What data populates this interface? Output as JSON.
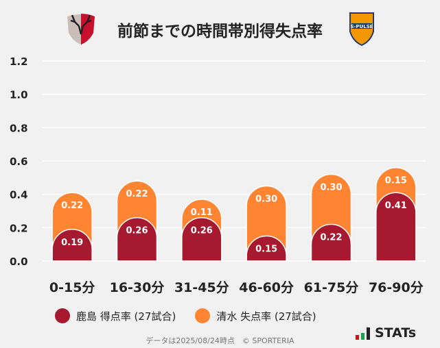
{
  "title": "前節までの時間帯別得失点率",
  "logos": {
    "left": "鹿島アントラーズ エンブレム",
    "right": "S-PULSE"
  },
  "footer": "データは2025/08/24時点　© SPORTERIA",
  "brand": "STATs",
  "chart_data": {
    "type": "bar",
    "stacked": true,
    "categories": [
      "0-15分",
      "16-30分",
      "31-45分",
      "46-60分",
      "61-75分",
      "76-90分"
    ],
    "series": [
      {
        "name": "鹿島 得点率 (27試合)",
        "color": "#a6192e",
        "values": [
          0.19,
          0.26,
          0.26,
          0.15,
          0.22,
          0.41
        ]
      },
      {
        "name": "清水 失点率 (27試合)",
        "color": "#ff8533",
        "values": [
          0.22,
          0.22,
          0.11,
          0.3,
          0.3,
          0.15
        ]
      }
    ],
    "ylim": [
      0,
      1.2
    ],
    "yticks": [
      "0.0",
      "0.2",
      "0.4",
      "0.6",
      "0.8",
      "1.0",
      "1.2"
    ],
    "grid": true,
    "legend": "bottom"
  }
}
